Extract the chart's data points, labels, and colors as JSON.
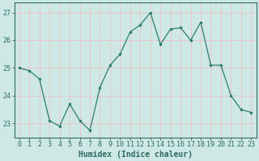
{
  "x": [
    0,
    1,
    2,
    3,
    4,
    5,
    6,
    7,
    8,
    9,
    10,
    11,
    12,
    13,
    14,
    15,
    16,
    17,
    18,
    19,
    20,
    21,
    22,
    23
  ],
  "y": [
    25.0,
    24.9,
    24.6,
    23.1,
    22.9,
    23.7,
    23.1,
    22.75,
    24.3,
    25.1,
    25.5,
    26.3,
    26.55,
    27.0,
    25.85,
    26.4,
    26.45,
    26.0,
    26.65,
    25.1,
    25.1,
    24.0,
    23.5,
    23.4
  ],
  "line_color": "#2d7d6e",
  "marker": ".",
  "marker_size": 3,
  "bg_color": "#cde8e5",
  "grid_color": "#e8c8c8",
  "xlabel": "Humidex (Indice chaleur)",
  "ylim": [
    22.5,
    27.35
  ],
  "xlim": [
    -0.5,
    23.5
  ],
  "yticks": [
    23,
    24,
    25,
    26,
    27
  ],
  "xticks": [
    0,
    1,
    2,
    3,
    4,
    5,
    6,
    7,
    8,
    9,
    10,
    11,
    12,
    13,
    14,
    15,
    16,
    17,
    18,
    19,
    20,
    21,
    22,
    23
  ],
  "tick_color": "#2d6b5e",
  "label_fontsize": 7,
  "tick_fontsize": 6,
  "linewidth": 0.9
}
